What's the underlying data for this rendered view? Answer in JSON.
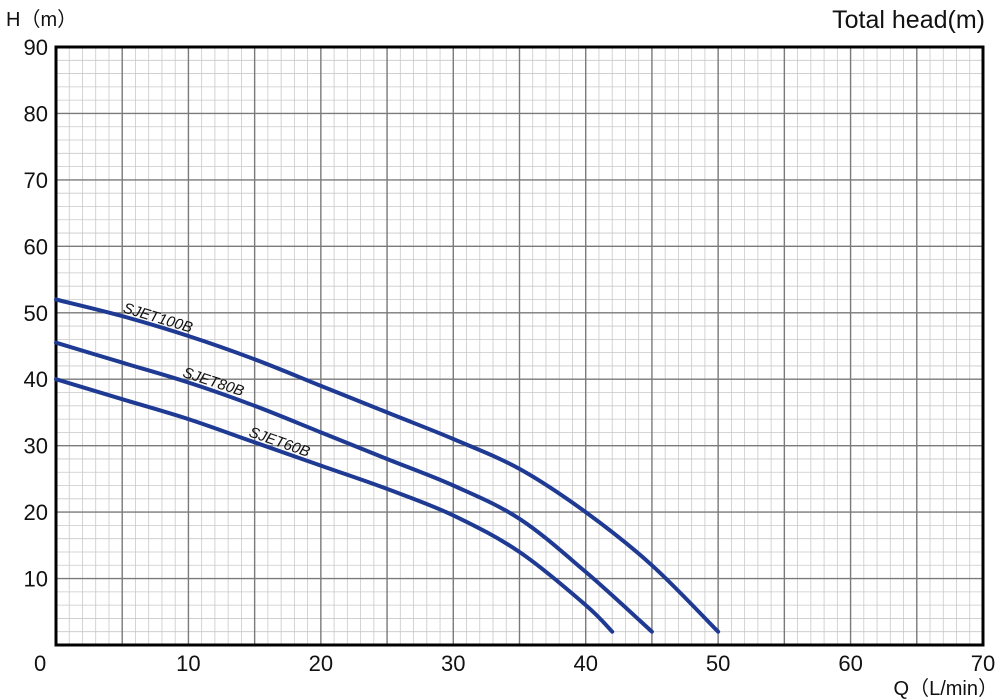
{
  "chart_data": {
    "type": "line",
    "title": "Total head(m)",
    "ylabel": "H（m）",
    "xlabel": "Q（L/min）",
    "xlim": [
      0,
      70
    ],
    "ylim": [
      0,
      90
    ],
    "x_ticks": [
      "0",
      "10",
      "20",
      "30",
      "40",
      "50",
      "60",
      "70"
    ],
    "y_ticks": [
      "10",
      "20",
      "30",
      "40",
      "50",
      "60",
      "70",
      "80",
      "90"
    ],
    "grid": "on",
    "line_color": "#1f3a93",
    "series": [
      {
        "name": "SJET100B",
        "x": [
          0,
          5,
          10,
          15,
          20,
          25,
          30,
          35,
          40,
          45,
          50
        ],
        "y": [
          52,
          49.5,
          46.5,
          43,
          39,
          35,
          31,
          26.5,
          20,
          12,
          2
        ]
      },
      {
        "name": "SJET80B",
        "x": [
          0,
          5,
          10,
          15,
          20,
          25,
          30,
          35,
          40,
          45
        ],
        "y": [
          45.5,
          42.5,
          39.5,
          36,
          32,
          28,
          24,
          19,
          11,
          2
        ]
      },
      {
        "name": "SJET60B",
        "x": [
          0,
          5,
          10,
          15,
          20,
          25,
          30,
          35,
          40,
          42
        ],
        "y": [
          40,
          37,
          34,
          30.5,
          27,
          23.5,
          19.5,
          14,
          6,
          2
        ]
      }
    ]
  }
}
